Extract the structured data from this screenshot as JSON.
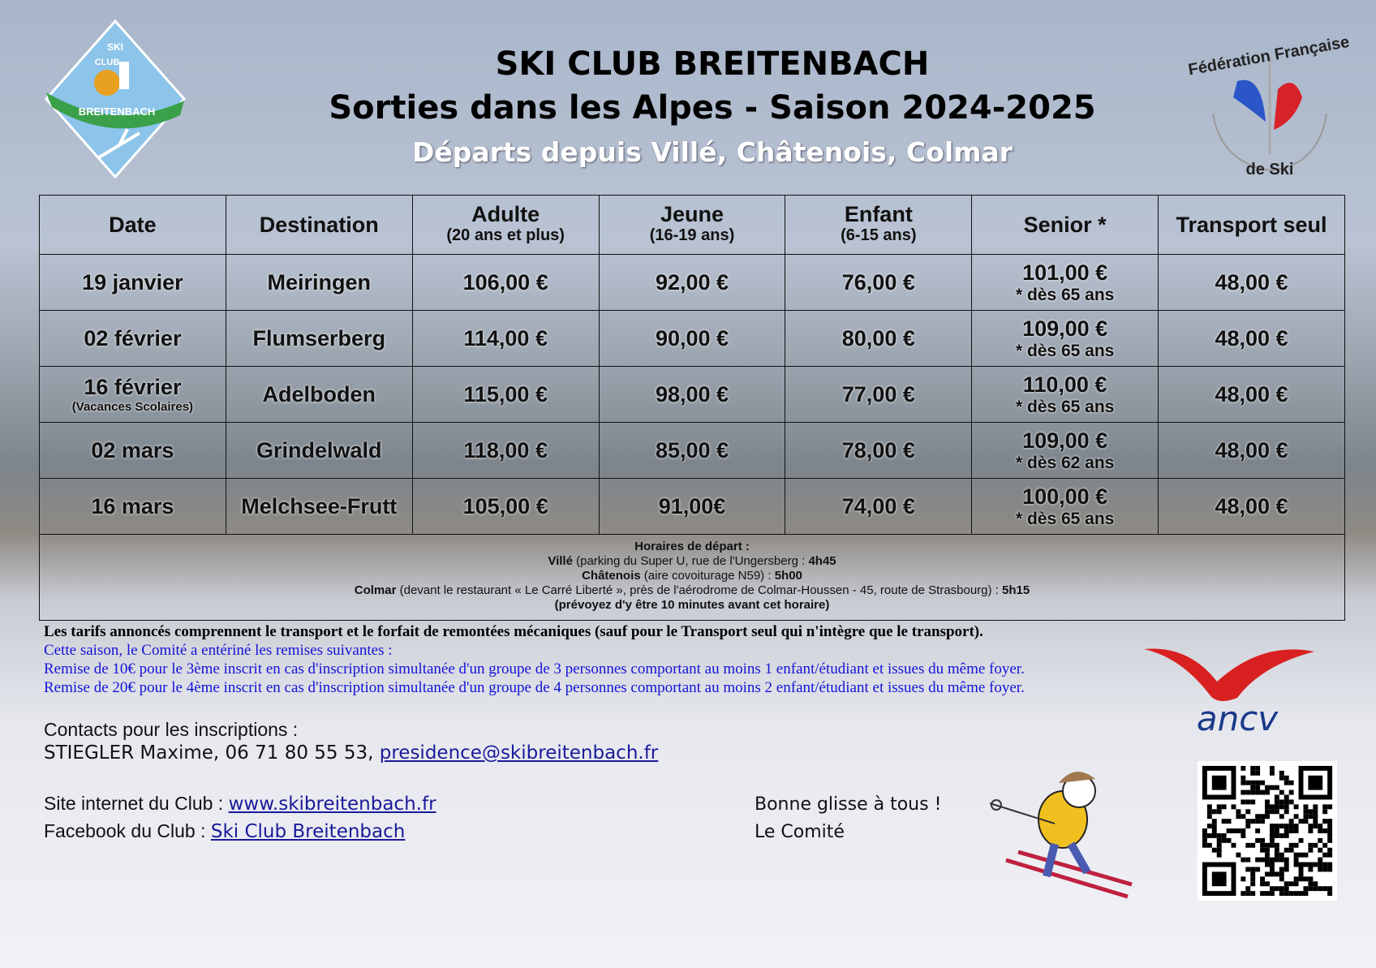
{
  "header": {
    "title": "SKI CLUB BREITENBACH",
    "subtitle": "Sorties dans les Alpes - Saison 2024-2025",
    "departures": "Départs depuis Villé, Châtenois, Colmar"
  },
  "logos": {
    "club": "SKI CLUB BREITENBACH",
    "ffs": "Fédération Française de Ski",
    "ancv": "ancv"
  },
  "table": {
    "headers": [
      {
        "label": "Date",
        "sub": ""
      },
      {
        "label": "Destination",
        "sub": ""
      },
      {
        "label": "Adulte",
        "sub": "(20 ans et plus)"
      },
      {
        "label": "Jeune",
        "sub": "(16-19 ans)"
      },
      {
        "label": "Enfant",
        "sub": "(6-15 ans)"
      },
      {
        "label": "Senior *",
        "sub": ""
      },
      {
        "label": "Transport seul",
        "sub": ""
      }
    ],
    "rows": [
      {
        "date": "19 janvier",
        "note": "",
        "destination": "Meiringen",
        "adulte": "106,00 €",
        "jeune": "92,00 €",
        "enfant": "76,00 €",
        "senior": "101,00 €",
        "senior_note": "* dès 65 ans",
        "transport": "48,00 €"
      },
      {
        "date": "02 février",
        "note": "",
        "destination": "Flumserberg",
        "adulte": "114,00 €",
        "jeune": "90,00 €",
        "enfant": "80,00 €",
        "senior": "109,00 €",
        "senior_note": "* dès 65 ans",
        "transport": "48,00 €"
      },
      {
        "date": "16 février",
        "note": "(Vacances Scolaires)",
        "destination": "Adelboden",
        "adulte": "115,00 €",
        "jeune": "98,00 €",
        "enfant": "77,00 €",
        "senior": "110,00 €",
        "senior_note": "* dès 65 ans",
        "transport": "48,00 €"
      },
      {
        "date": "02 mars",
        "note": "",
        "destination": "Grindelwald",
        "adulte": "118,00 €",
        "jeune": "85,00 €",
        "enfant": "78,00 €",
        "senior": "109,00 €",
        "senior_note": "* dès 62 ans",
        "transport": "48,00 €"
      },
      {
        "date": "16 mars",
        "note": "",
        "destination": "Melchsee-Frutt",
        "adulte": "105,00 €",
        "jeune": "91,00€",
        "enfant": "74,00 €",
        "senior": "100,00 €",
        "senior_note": "* dès 65 ans",
        "transport": "48,00 €"
      }
    ]
  },
  "horaires": {
    "title": "Horaires de départ :",
    "ville_name": "Villé",
    "ville_desc": " (parking du Super U, rue de l'Ungersberg : ",
    "ville_time": "4h45",
    "chat_name": "Châtenois",
    "chat_desc": " (aire covoiturage N59) : ",
    "chat_time": "5h00",
    "colmar_name": "Colmar",
    "colmar_desc": " (devant le restaurant « Le Carré Liberté », près de l'aérodrome de Colmar-Houssen - 45, route de Strasbourg) : ",
    "colmar_time": "5h15",
    "note": "(prévoyez d'y être 10 minutes avant cet horaire)"
  },
  "info": {
    "tarifs": "Les tarifs annoncés comprennent le transport et le forfait de remontées mécaniques (sauf pour le Transport seul qui n'intègre que le transport).",
    "remises_intro": "Cette saison, le Comité a entériné les remises suivantes :",
    "remise1": "Remise de 10€ pour le 3ème inscrit en cas d'inscription simultanée d'un groupe de 3 personnes comportant au moins 1 enfant/étudiant et issues du même foyer.",
    "remise2": "Remise de 20€ pour le 4ème inscrit en cas d'inscription simultanée d'un groupe de 4 personnes comportant au moins 2 enfant/étudiant et issues du même foyer."
  },
  "contacts": {
    "label": "Contacts pour les inscriptions :",
    "name": "STIEGLER Maxime, 06 71 80 55 53, ",
    "email": "presidence@skibreitenbach.fr",
    "site_label": "Site internet du Club : ",
    "site": "www.skibreitenbach.fr",
    "fb_label": "Facebook du Club : ",
    "fb": "Ski Club Breitenbach"
  },
  "closing": {
    "line1": "Bonne glisse à tous !",
    "line2": "Le Comité"
  }
}
